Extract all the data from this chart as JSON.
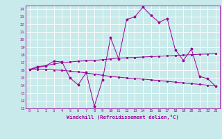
{
  "xlabel": "Windchill (Refroidissement éolien,°C)",
  "bg_color": "#c8eaea",
  "grid_color": "#ffffff",
  "line_color": "#990099",
  "hours": [
    0,
    1,
    2,
    3,
    4,
    5,
    6,
    7,
    8,
    9,
    10,
    11,
    12,
    13,
    14,
    15,
    16,
    17,
    18,
    19,
    20,
    21,
    22,
    23
  ],
  "temp_data": [
    16.1,
    16.5,
    16.6,
    17.2,
    17.1,
    15.0,
    14.1,
    15.7,
    11.3,
    14.7,
    20.3,
    17.5,
    22.7,
    23.0,
    24.3,
    23.2,
    22.3,
    22.8,
    18.7,
    17.3,
    18.8,
    15.2,
    14.9,
    13.9
  ],
  "reg1": [
    16.1,
    16.35,
    16.6,
    16.85,
    17.0,
    17.1,
    17.2,
    17.25,
    17.3,
    17.4,
    17.5,
    17.6,
    17.65,
    17.7,
    17.75,
    17.8,
    17.85,
    17.9,
    17.95,
    18.0,
    18.05,
    18.1,
    18.15,
    18.2
  ],
  "reg2": [
    16.1,
    16.15,
    16.1,
    16.05,
    16.0,
    15.9,
    15.8,
    15.65,
    15.5,
    15.35,
    15.2,
    15.1,
    15.0,
    14.9,
    14.85,
    14.75,
    14.65,
    14.55,
    14.45,
    14.35,
    14.25,
    14.15,
    14.05,
    13.95
  ],
  "ylim": [
    11,
    24.5
  ],
  "yticks": [
    11,
    12,
    13,
    14,
    15,
    16,
    17,
    18,
    19,
    20,
    21,
    22,
    23,
    24
  ],
  "xlim": [
    -0.5,
    23.5
  ],
  "xticks": [
    0,
    1,
    2,
    3,
    4,
    5,
    6,
    7,
    8,
    9,
    10,
    11,
    12,
    13,
    14,
    15,
    16,
    17,
    18,
    19,
    20,
    21,
    22,
    23
  ],
  "tick_fontsize": 4.0,
  "xlabel_fontsize": 5.2
}
